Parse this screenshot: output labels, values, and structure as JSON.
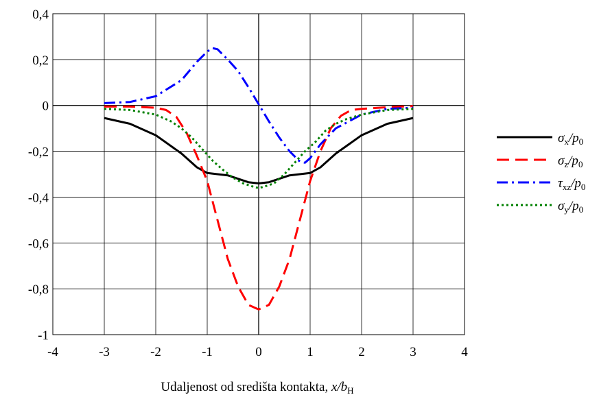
{
  "chart_data": {
    "type": "line",
    "xlabel_text": "Udaljenost od središta kontakta, ",
    "xlabel_var": "x",
    "xlabel_slash": "/",
    "xlabel_b": "b",
    "xlabel_sub": "H",
    "xlim": [
      -4,
      4
    ],
    "ylim": [
      -1,
      0.4
    ],
    "xticks": [
      -4,
      -3,
      -2,
      -1,
      0,
      1,
      2,
      3,
      4
    ],
    "xtick_labels": [
      "-4",
      "-3",
      "-2",
      "-1",
      "0",
      "1",
      "2",
      "3",
      "4"
    ],
    "yticks": [
      0.4,
      0.2,
      0,
      -0.2,
      -0.4,
      -0.6,
      -0.8,
      -1
    ],
    "ytick_labels": [
      "0,4",
      "0,2",
      "0",
      "-0,2",
      "-0,4",
      "-0,6",
      "-0,8",
      "-1"
    ],
    "grid": true,
    "legend_position": "right",
    "series": [
      {
        "name": "σx/p0",
        "legend_symbol": "σ",
        "legend_sub": "x",
        "legend_p": "p",
        "legend_p_sub": "0",
        "color": "#000000",
        "dash": "solid",
        "x": [
          -3,
          -2.5,
          -2,
          -1.5,
          -1.2,
          -1,
          -0.8,
          -0.6,
          -0.4,
          -0.2,
          0,
          0.2,
          0.4,
          0.6,
          0.8,
          1,
          1.2,
          1.5,
          2,
          2.5,
          3
        ],
        "y": [
          -0.055,
          -0.08,
          -0.13,
          -0.21,
          -0.27,
          -0.295,
          -0.3,
          -0.305,
          -0.32,
          -0.335,
          -0.34,
          -0.335,
          -0.32,
          -0.305,
          -0.3,
          -0.295,
          -0.27,
          -0.21,
          -0.13,
          -0.08,
          -0.055
        ]
      },
      {
        "name": "σz/p0",
        "legend_symbol": "σ",
        "legend_sub": "z",
        "legend_p": "p",
        "legend_p_sub": "0",
        "color": "#ff0000",
        "dash": "dashed",
        "x": [
          -3,
          -2.5,
          -2,
          -1.8,
          -1.6,
          -1.4,
          -1.2,
          -1,
          -0.8,
          -0.6,
          -0.4,
          -0.2,
          0,
          0.2,
          0.4,
          0.6,
          0.8,
          1,
          1.2,
          1.4,
          1.6,
          1.8,
          2,
          2.5,
          3
        ],
        "y": [
          -0.005,
          -0.005,
          -0.01,
          -0.02,
          -0.05,
          -0.12,
          -0.22,
          -0.33,
          -0.5,
          -0.67,
          -0.79,
          -0.87,
          -0.89,
          -0.87,
          -0.79,
          -0.67,
          -0.5,
          -0.33,
          -0.2,
          -0.1,
          -0.045,
          -0.02,
          -0.015,
          -0.008,
          -0.003
        ]
      },
      {
        "name": "τxz/p0",
        "legend_symbol": "τ",
        "legend_sub": "xz",
        "legend_p": "p",
        "legend_p_sub": "0",
        "color": "#0000ff",
        "dash": "dashdot",
        "x": [
          -3,
          -2.5,
          -2,
          -1.5,
          -1.2,
          -1,
          -0.9,
          -0.8,
          -0.6,
          -0.4,
          -0.2,
          0,
          0.2,
          0.4,
          0.6,
          0.8,
          0.9,
          1,
          1.2,
          1.5,
          2,
          2.5,
          3
        ],
        "y": [
          0.01,
          0.015,
          0.04,
          0.11,
          0.19,
          0.235,
          0.25,
          0.245,
          0.2,
          0.15,
          0.08,
          0.005,
          -0.07,
          -0.14,
          -0.2,
          -0.245,
          -0.25,
          -0.23,
          -0.17,
          -0.1,
          -0.04,
          -0.015,
          -0.01
        ]
      },
      {
        "name": "σy/p0",
        "legend_symbol": "σ",
        "legend_sub": "y",
        "legend_p": "p",
        "legend_p_sub": "0",
        "color": "#008000",
        "dash": "dotted",
        "x": [
          -3,
          -2.5,
          -2,
          -1.7,
          -1.5,
          -1.3,
          -1.1,
          -0.9,
          -0.7,
          -0.5,
          -0.3,
          -0.1,
          0,
          0.1,
          0.3,
          0.5,
          0.7,
          0.9,
          1.1,
          1.3,
          1.5,
          1.7,
          2,
          2.5,
          3
        ],
        "y": [
          -0.015,
          -0.02,
          -0.04,
          -0.07,
          -0.1,
          -0.14,
          -0.19,
          -0.24,
          -0.28,
          -0.315,
          -0.34,
          -0.355,
          -0.36,
          -0.355,
          -0.34,
          -0.3,
          -0.25,
          -0.2,
          -0.16,
          -0.11,
          -0.08,
          -0.06,
          -0.04,
          -0.02,
          -0.015
        ]
      }
    ]
  }
}
